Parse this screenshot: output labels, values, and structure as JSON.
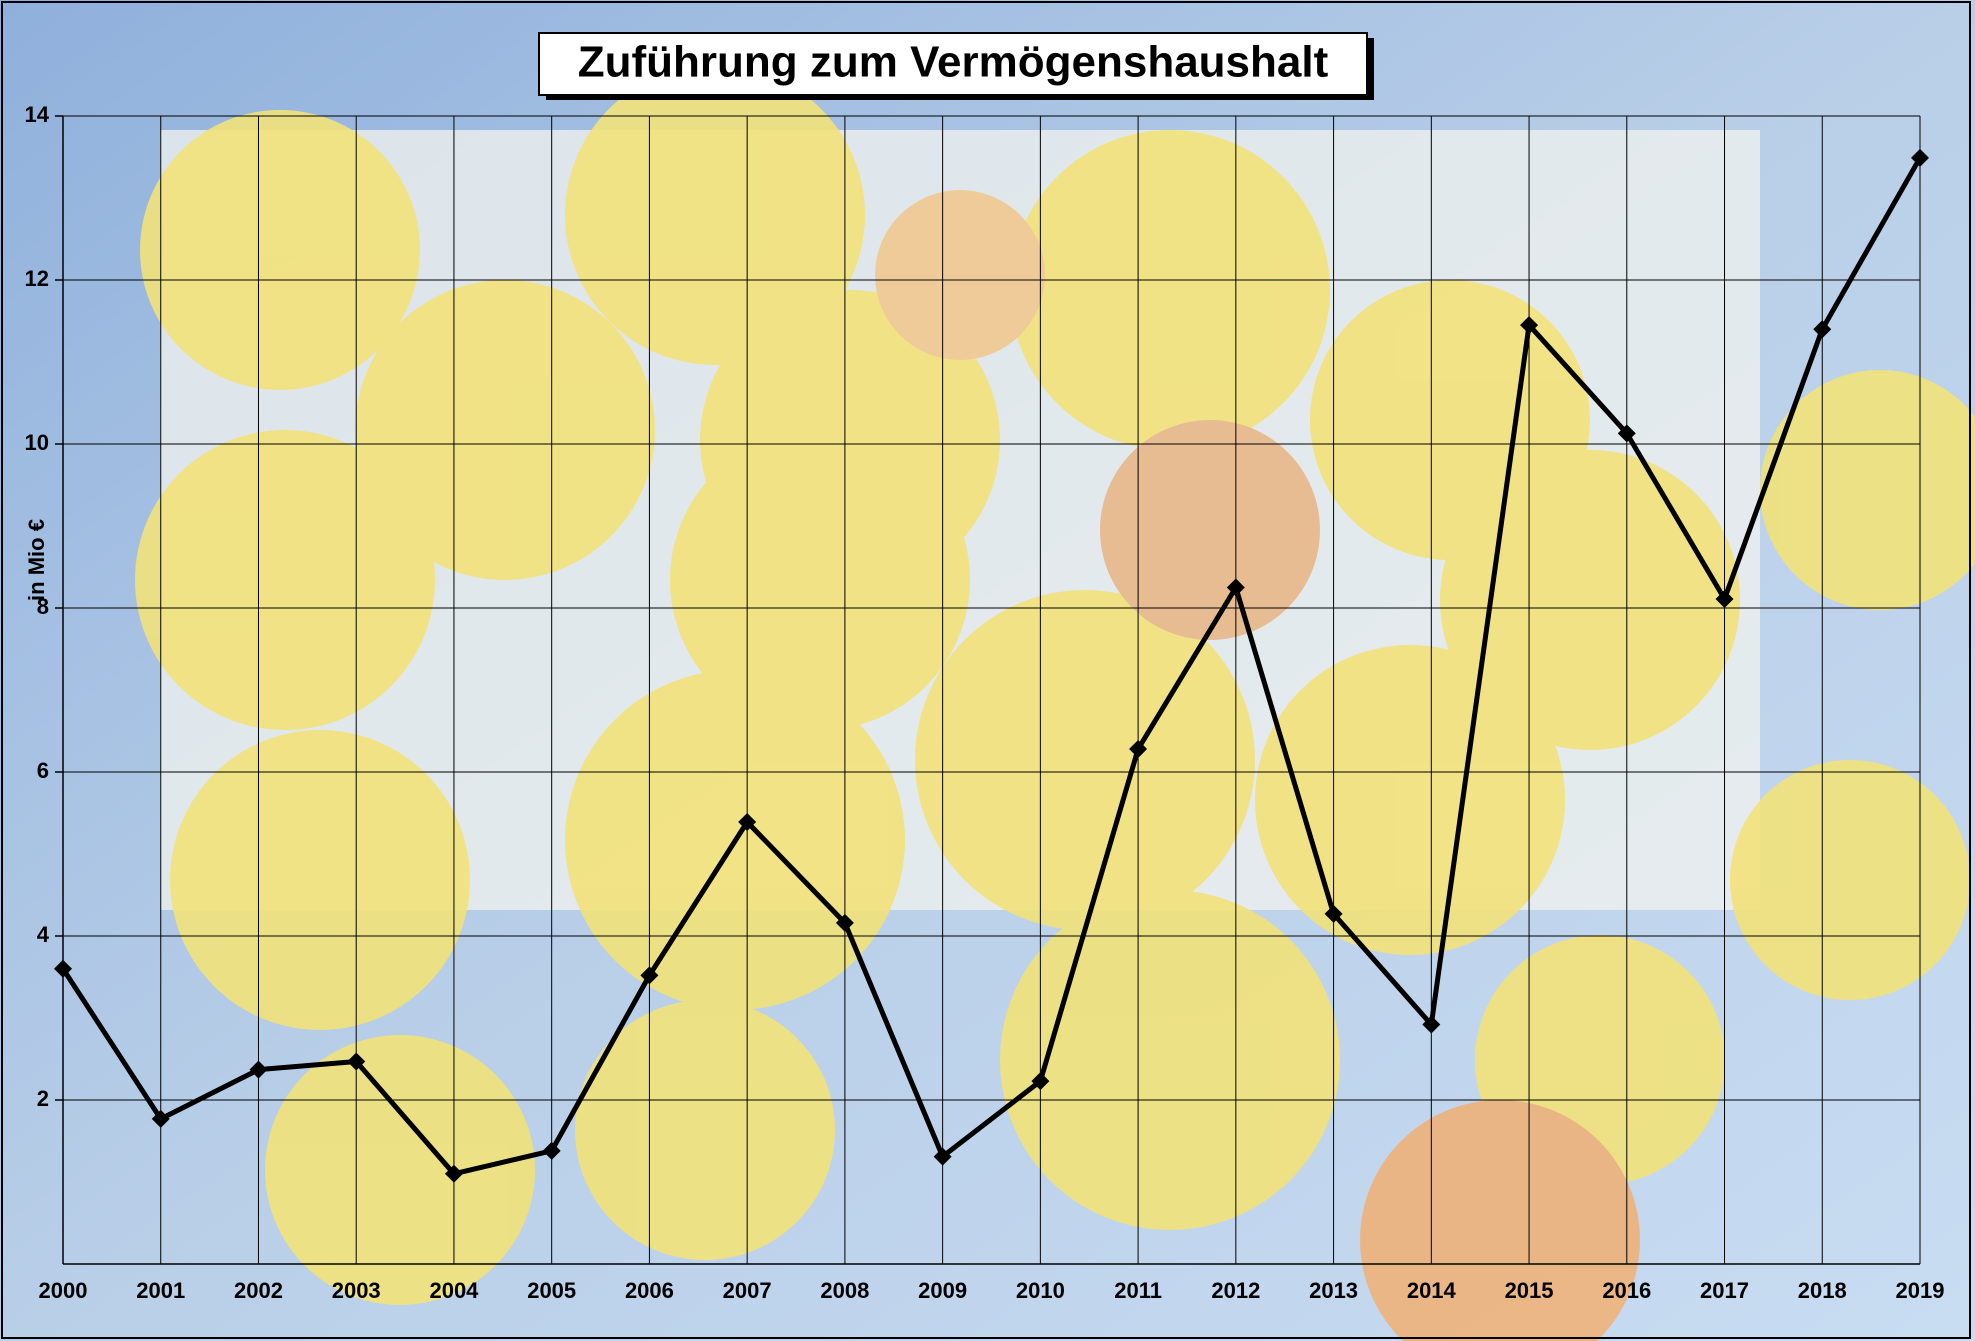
{
  "chart_data": {
    "type": "line",
    "title": "Zuführung zum Vermögenshaushalt",
    "y_label": "in Mio €",
    "categories": [
      "2000",
      "2001",
      "2002",
      "2003",
      "2004",
      "2005",
      "2006",
      "2007",
      "2008",
      "2009",
      "2010",
      "2011",
      "2012",
      "2013",
      "2014",
      "2015",
      "2016",
      "2017",
      "2018",
      "2019"
    ],
    "series": [
      {
        "name": "Zuführung",
        "color": "#000000",
        "values": [
          3.6,
          1.77,
          2.37,
          2.47,
          1.1,
          1.38,
          3.52,
          5.39,
          4.16,
          1.31,
          2.23,
          6.28,
          8.25,
          4.27,
          2.92,
          11.45,
          10.13,
          8.11,
          11.4,
          13.49
        ]
      }
    ],
    "ylim": [
      0,
      14
    ],
    "yticks": [
      2,
      4,
      6,
      8,
      10,
      12,
      14
    ],
    "grid": true
  }
}
